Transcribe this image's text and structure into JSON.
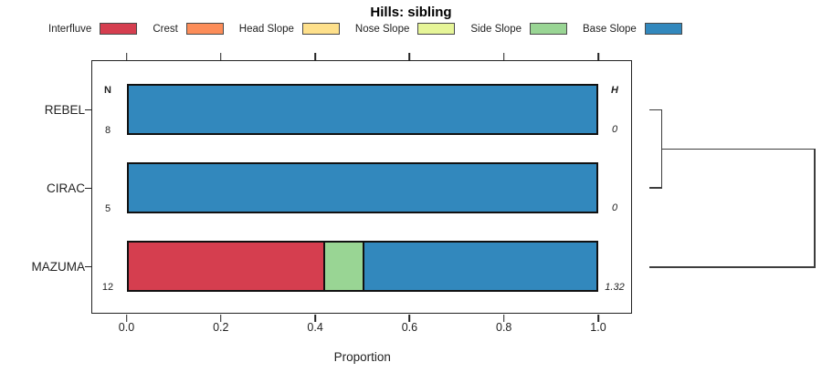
{
  "chart_data": {
    "type": "bar",
    "orientation": "horizontal",
    "stacked": true,
    "title": "Hills: sibling",
    "xlabel": "Proportion",
    "xlim": [
      0,
      1
    ],
    "xticks": [
      0,
      0.2,
      0.4,
      0.6,
      0.8,
      1
    ],
    "xtick_labels": [
      "0.0",
      "0.2",
      "0.4",
      "0.6",
      "0.8",
      "1.0"
    ],
    "n_header": "N",
    "h_header": "H",
    "legend_position": "top",
    "grid": false,
    "legend": [
      {
        "label": "Interfluve",
        "color": "#d53e4f"
      },
      {
        "label": "Crest",
        "color": "#fc8d59"
      },
      {
        "label": "Head Slope",
        "color": "#fee08b"
      },
      {
        "label": "Nose Slope",
        "color": "#e6f598"
      },
      {
        "label": "Side Slope",
        "color": "#99d594"
      },
      {
        "label": "Base Slope",
        "color": "#3288bd"
      }
    ],
    "rows": [
      {
        "category": "REBEL",
        "n": "8",
        "h": "0",
        "segments": [
          {
            "label": "Base Slope",
            "value": 1.0
          }
        ]
      },
      {
        "category": "CIRAC",
        "n": "5",
        "h": "0",
        "segments": [
          {
            "label": "Base Slope",
            "value": 1.0
          }
        ]
      },
      {
        "category": "MAZUMA",
        "n": "12",
        "h": "1.32",
        "segments": [
          {
            "label": "Interfluve",
            "value": 0.417
          },
          {
            "label": "Side Slope",
            "value": 0.083
          },
          {
            "label": "Base Slope",
            "value": 0.5
          }
        ]
      }
    ],
    "dendrogram": {
      "first_merge": [
        "REBEL",
        "CIRAC"
      ],
      "second_merge": [
        "REBEL+CIRAC",
        "MAZUMA"
      ]
    }
  }
}
